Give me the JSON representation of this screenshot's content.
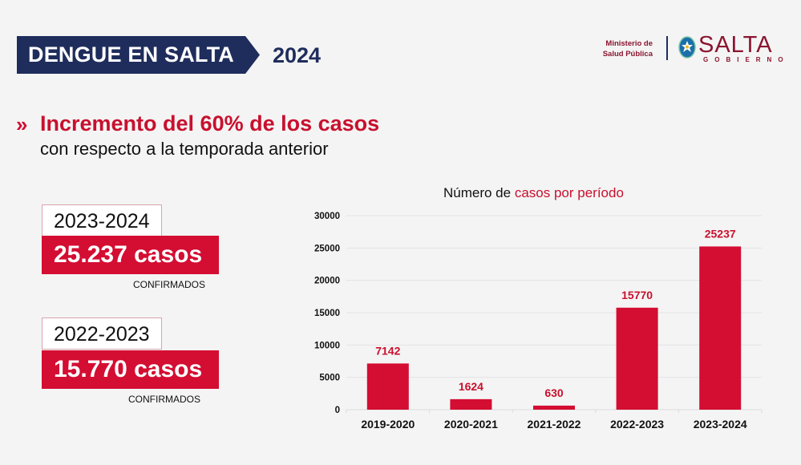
{
  "header": {
    "banner_title": "DENGUE EN SALTA",
    "year": "2024",
    "ministry_line1": "Ministerio de",
    "ministry_line2": "Salud Pública",
    "logo_name": "SALTA",
    "logo_sub": "GOBIERNO",
    "logo_icon": "star-badge-icon"
  },
  "headline": {
    "chevron": "»",
    "main": "Incremento del 60% de los casos",
    "sub": "con respecto a la temporada anterior"
  },
  "stats": [
    {
      "period": "2023-2024",
      "cases": "25.237 casos",
      "note": "CONFIRMADOS"
    },
    {
      "period": "2022-2023",
      "cases": "15.770 casos",
      "note": "CONFIRMADOS"
    }
  ],
  "colors": {
    "navy": "#1f2d5c",
    "red": "#d40d32",
    "maroon": "#8a1530"
  },
  "chart_data": {
    "type": "bar",
    "title_part1": "Número de ",
    "title_part2": "casos por período",
    "categories": [
      "2019-2020",
      "2020-2021",
      "2021-2022",
      "2022-2023",
      "2023-2024"
    ],
    "values": [
      7142,
      1624,
      630,
      15770,
      25237
    ],
    "value_labels": [
      "7142",
      "1624",
      "630",
      "15770",
      "25237"
    ],
    "ylim": [
      0,
      30000
    ],
    "yticks": [
      0,
      5000,
      10000,
      15000,
      20000,
      25000,
      30000
    ],
    "ytick_labels": [
      "0",
      "5000",
      "10000",
      "15000",
      "20000",
      "25000",
      "30000"
    ],
    "xlabel": "",
    "ylabel": "",
    "grid": true,
    "bar_color": "#d40d32"
  }
}
